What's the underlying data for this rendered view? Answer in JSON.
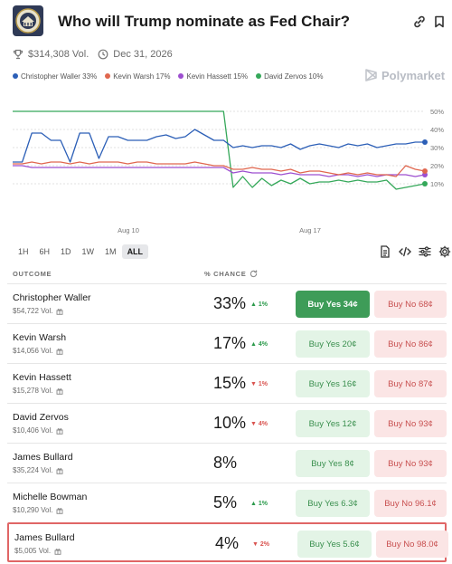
{
  "header": {
    "title": "Who will Trump nominate as Fed Chair?",
    "volume": "$314,308 Vol.",
    "end_date": "Dec 31, 2026",
    "brand": "Polymarket"
  },
  "legend": [
    {
      "label": "Christopher Waller 33%",
      "color": "#2c5fb7"
    },
    {
      "label": "Kevin Warsh 17%",
      "color": "#e0674f"
    },
    {
      "label": "Kevin Hassett 15%",
      "color": "#9d4fd0"
    },
    {
      "label": "David Zervos 10%",
      "color": "#35a85a"
    }
  ],
  "time_ranges": [
    {
      "label": "1H",
      "active": false
    },
    {
      "label": "6H",
      "active": false
    },
    {
      "label": "1D",
      "active": false
    },
    {
      "label": "1W",
      "active": false
    },
    {
      "label": "1M",
      "active": false
    },
    {
      "label": "ALL",
      "active": true
    }
  ],
  "table": {
    "col_outcome": "OUTCOME",
    "col_chance": "% CHANCE"
  },
  "outcomes": [
    {
      "name": "Christopher Waller",
      "volume": "$54,722 Vol.",
      "chance": "33%",
      "change": "1%",
      "direction": "up",
      "yes": "Buy Yes 34¢",
      "no": "Buy No 68¢"
    },
    {
      "name": "Kevin Warsh",
      "volume": "$14,056 Vol.",
      "chance": "17%",
      "change": "4%",
      "direction": "up",
      "yes": "Buy Yes 20¢",
      "no": "Buy No 86¢"
    },
    {
      "name": "Kevin Hassett",
      "volume": "$15,278 Vol.",
      "chance": "15%",
      "change": "1%",
      "direction": "down",
      "yes": "Buy Yes 16¢",
      "no": "Buy No 87¢"
    },
    {
      "name": "David Zervos",
      "volume": "$10,406 Vol.",
      "chance": "10%",
      "change": "4%",
      "direction": "down",
      "yes": "Buy Yes 12¢",
      "no": "Buy No 93¢"
    },
    {
      "name": "James Bullard",
      "volume": "$35,224 Vol.",
      "chance": "8%",
      "change": "",
      "direction": "none",
      "yes": "Buy Yes 8¢",
      "no": "Buy No 93¢"
    },
    {
      "name": "Michelle Bowman",
      "volume": "$10,290 Vol.",
      "chance": "5%",
      "change": "1%",
      "direction": "up",
      "yes": "Buy Yes 6.3¢",
      "no": "Buy No 96.1¢"
    },
    {
      "name": "James Bullard",
      "volume": "$5,005 Vol.",
      "chance": "4%",
      "change": "2%",
      "direction": "down",
      "yes": "Buy Yes 5.6¢",
      "no": "Buy No 98.0¢"
    }
  ],
  "chart_data": {
    "type": "line",
    "x_ticks": [
      "Aug 10",
      "Aug 17"
    ],
    "y_ticks": [
      "50%",
      "40%",
      "30%",
      "20%",
      "10%"
    ],
    "ylim": [
      0,
      50
    ],
    "grid": true,
    "series": [
      {
        "name": "Christopher Waller",
        "color": "#2c5fb7",
        "values": [
          22,
          22,
          38,
          38,
          34,
          34,
          22,
          38,
          38,
          24,
          36,
          36,
          34,
          34,
          34,
          36,
          37,
          35,
          36,
          40,
          37,
          34,
          34,
          30,
          31,
          30,
          31,
          31,
          30,
          32,
          29,
          31,
          32,
          31,
          30,
          32,
          31,
          32,
          30,
          31,
          32,
          32,
          33,
          33
        ]
      },
      {
        "name": "Kevin Warsh",
        "color": "#e0674f",
        "values": [
          21,
          21,
          22,
          21,
          22,
          22,
          21,
          22,
          21,
          22,
          22,
          22,
          21,
          22,
          22,
          21,
          21,
          21,
          21,
          22,
          21,
          20,
          20,
          18,
          18,
          19,
          18,
          18,
          17,
          18,
          16,
          17,
          17,
          16,
          15,
          16,
          15,
          16,
          15,
          15,
          14,
          20,
          18,
          17
        ]
      },
      {
        "name": "Kevin Hassett",
        "color": "#9d4fd0",
        "values": [
          20,
          20,
          19,
          19,
          19,
          19,
          19,
          19,
          19,
          19,
          19,
          19,
          19,
          19,
          19,
          19,
          19,
          19,
          19,
          19,
          19,
          19,
          19,
          16,
          17,
          16,
          16,
          16,
          15,
          16,
          15,
          15,
          15,
          14,
          15,
          15,
          14,
          15,
          14,
          15,
          15,
          15,
          14,
          15
        ]
      },
      {
        "name": "David Zervos",
        "color": "#35a85a",
        "values": [
          50,
          50,
          50,
          50,
          50,
          50,
          50,
          50,
          50,
          50,
          50,
          50,
          50,
          50,
          50,
          50,
          50,
          50,
          50,
          50,
          50,
          50,
          50,
          8,
          14,
          8,
          13,
          9,
          12,
          10,
          13,
          10,
          11,
          11,
          12,
          11,
          12,
          11,
          11,
          12,
          7,
          8,
          9,
          10
        ]
      }
    ]
  }
}
